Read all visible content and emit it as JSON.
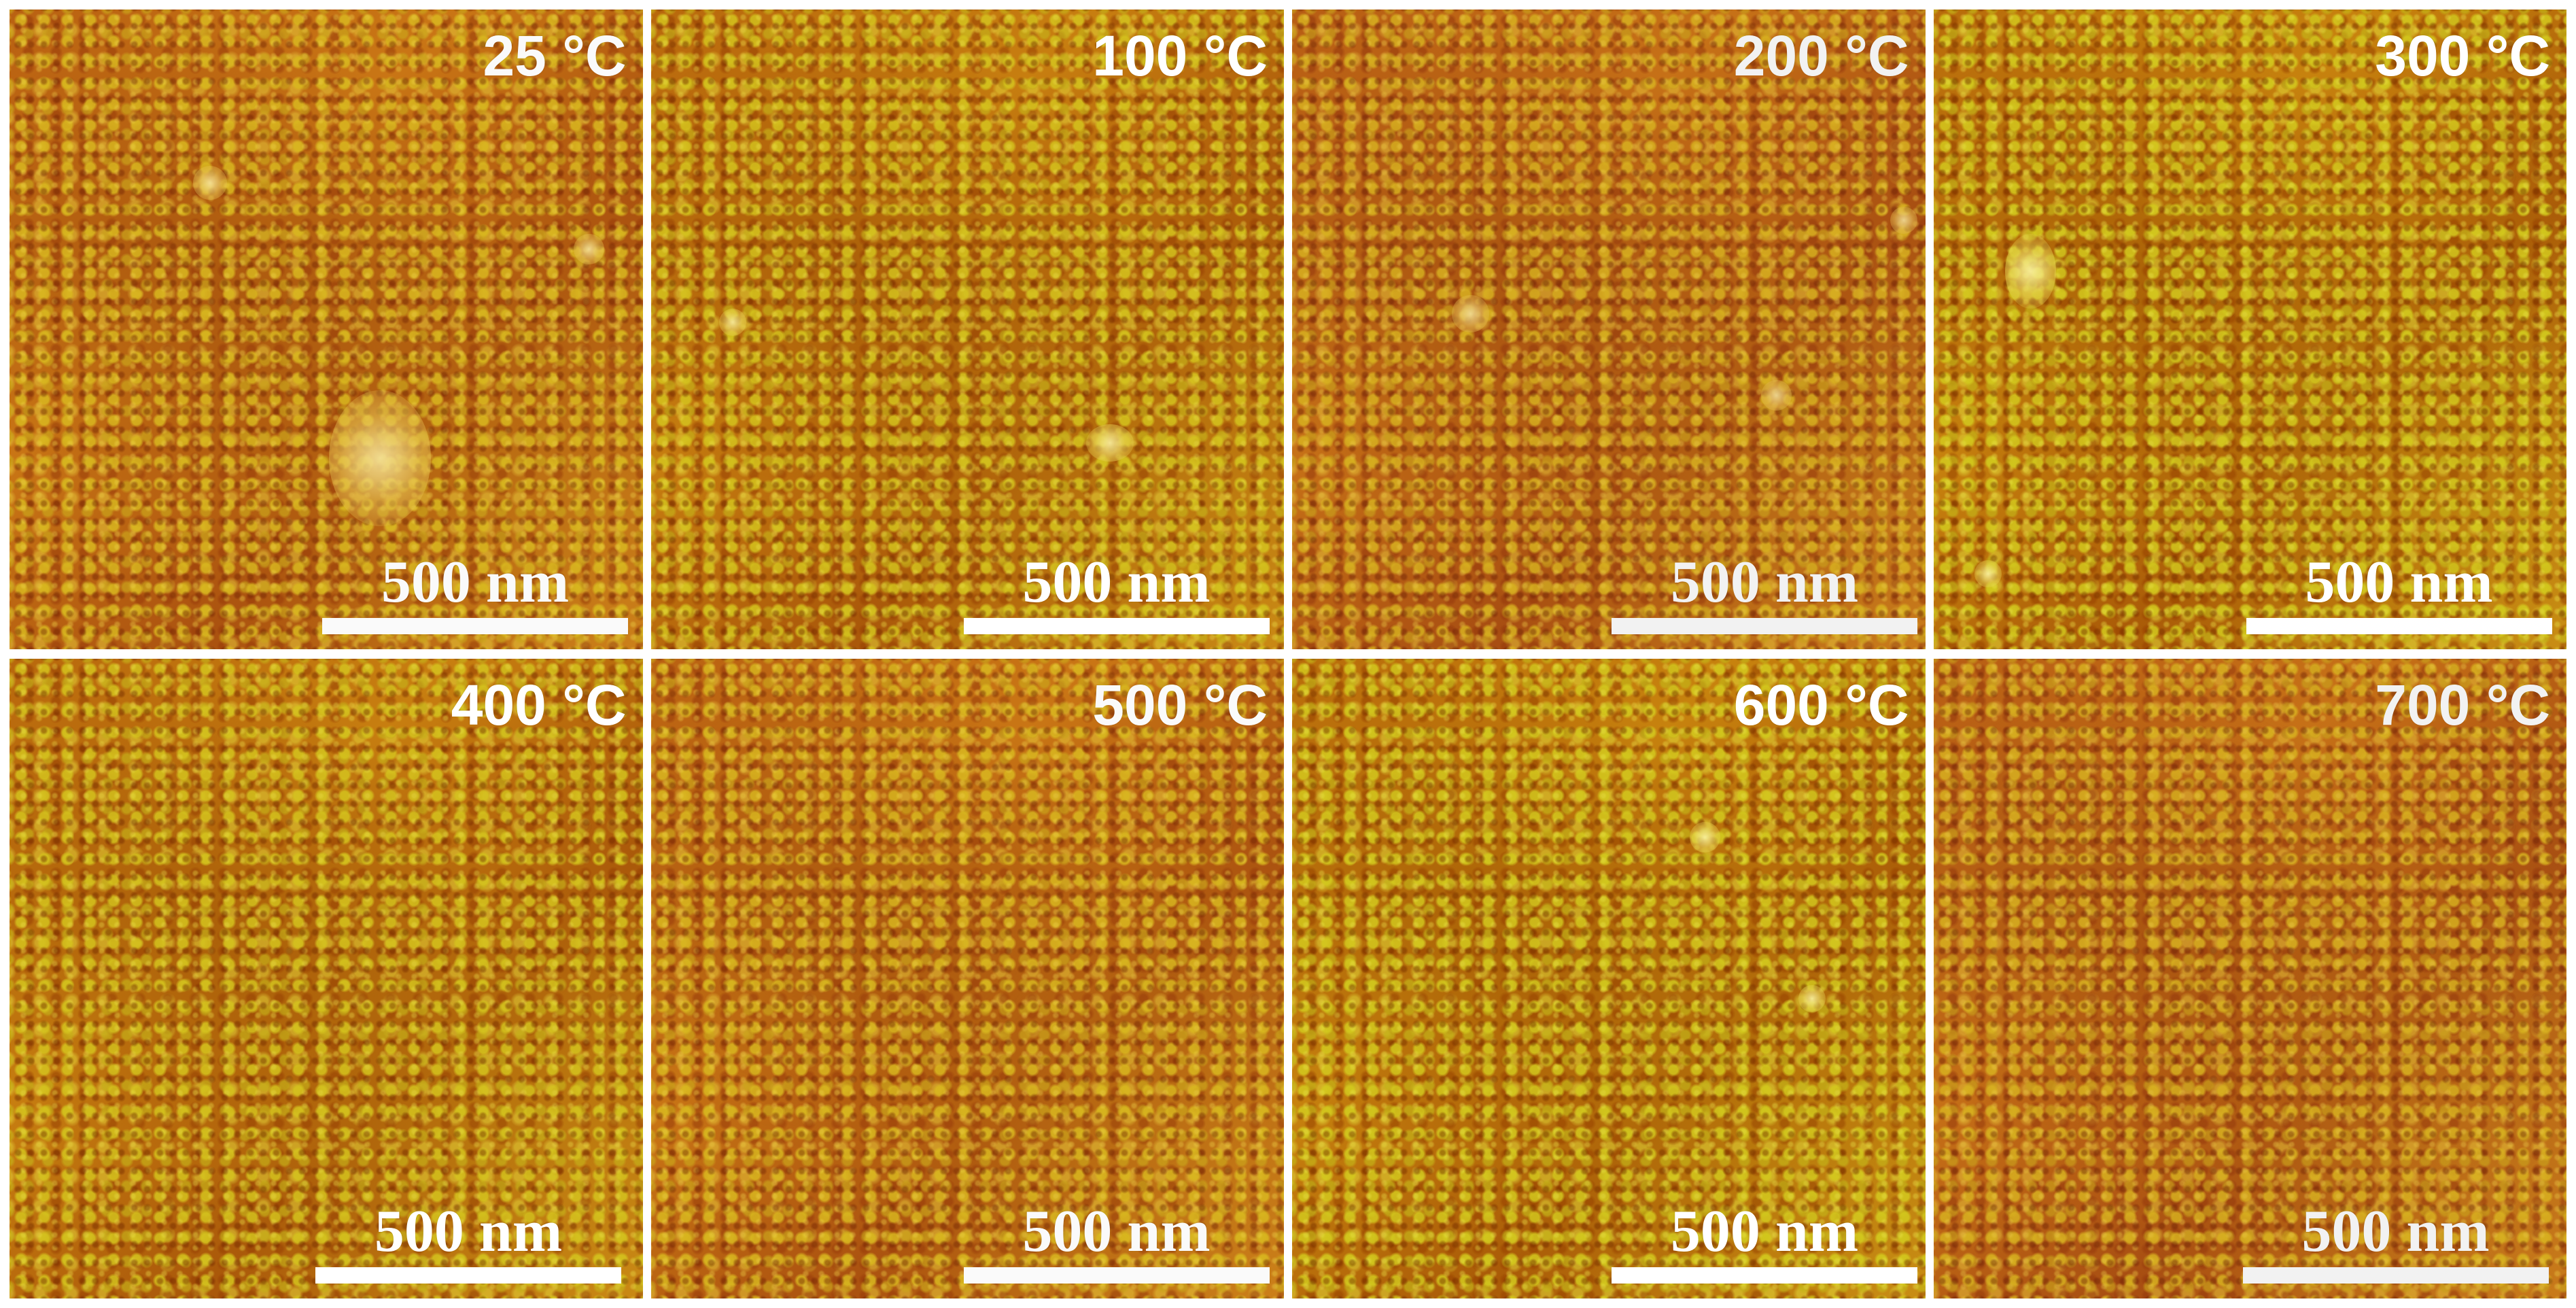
{
  "figure": {
    "panels": [
      {
        "temperature": "25 °C",
        "scale_label": "500 nm"
      },
      {
        "temperature": "100 °C",
        "scale_label": "500 nm"
      },
      {
        "temperature": "200 °C",
        "scale_label": "500 nm"
      },
      {
        "temperature": "300 °C",
        "scale_label": "500 nm"
      },
      {
        "temperature": "400 °C",
        "scale_label": "500 nm"
      },
      {
        "temperature": "500 °C",
        "scale_label": "500 nm"
      },
      {
        "temperature": "600 °C",
        "scale_label": "500 nm"
      },
      {
        "temperature": "700 °C",
        "scale_label": "500 nm"
      }
    ],
    "colors": {
      "dark_brown": "#a9540c",
      "orange": "#c77a12",
      "yellow_grain": "#d6be1e",
      "label": "#ffffff"
    }
  }
}
